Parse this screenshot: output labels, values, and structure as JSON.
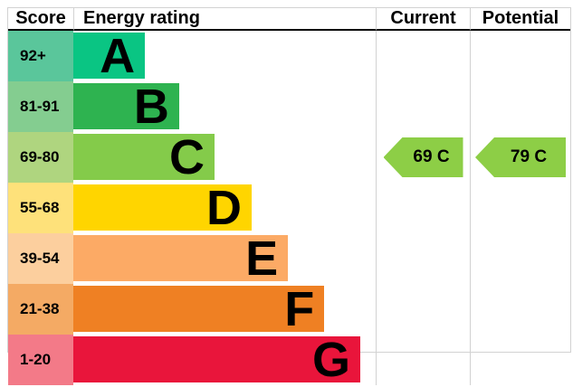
{
  "header": {
    "score": "Score",
    "energy_rating": "Energy rating",
    "current": "Current",
    "potential": "Potential"
  },
  "chart_data": {
    "type": "bar",
    "title": "Energy rating",
    "orientation": "horizontal",
    "arrow_color": "#8dce46",
    "bands": [
      {
        "letter": "A",
        "score_range": "92+",
        "bar_color": "#0ac583",
        "score_cell_color": "#5ac69b",
        "width_pct": 23.7
      },
      {
        "letter": "B",
        "score_range": "81-91",
        "bar_color": "#2eb350",
        "score_cell_color": "#84cd90",
        "width_pct": 35.0
      },
      {
        "letter": "C",
        "score_range": "69-80",
        "bar_color": "#84cb4a",
        "score_cell_color": "#afd57f",
        "width_pct": 46.7
      },
      {
        "letter": "D",
        "score_range": "55-68",
        "bar_color": "#ffd500",
        "score_cell_color": "#fee17a",
        "width_pct": 59.0
      },
      {
        "letter": "E",
        "score_range": "39-54",
        "bar_color": "#fcaa65",
        "score_cell_color": "#fccf9e",
        "width_pct": 71.0
      },
      {
        "letter": "F",
        "score_range": "21-38",
        "bar_color": "#ef8023",
        "score_cell_color": "#f4aa64",
        "width_pct": 83.0
      },
      {
        "letter": "G",
        "score_range": "1-20",
        "bar_color": "#e9153b",
        "score_cell_color": "#f37a88",
        "width_pct": 94.9
      }
    ],
    "current": {
      "value": 69,
      "band": "C",
      "label": "69 C"
    },
    "potential": {
      "value": 79,
      "band": "C",
      "label": "79 C"
    }
  }
}
